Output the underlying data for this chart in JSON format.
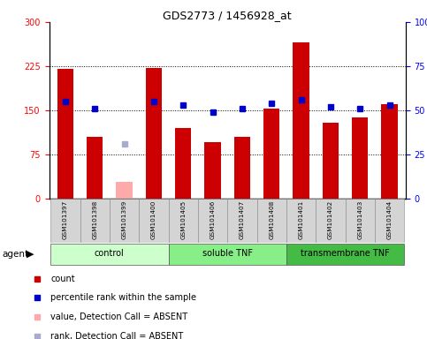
{
  "title": "GDS2773 / 1456928_at",
  "samples": [
    "GSM101397",
    "GSM101398",
    "GSM101399",
    "GSM101400",
    "GSM101405",
    "GSM101406",
    "GSM101407",
    "GSM101408",
    "GSM101401",
    "GSM101402",
    "GSM101403",
    "GSM101404"
  ],
  "count_values": [
    220,
    105,
    28,
    222,
    120,
    95,
    105,
    153,
    265,
    128,
    138,
    160
  ],
  "count_absent": [
    false,
    false,
    true,
    false,
    false,
    false,
    false,
    false,
    false,
    false,
    false,
    false
  ],
  "rank_values_pct": [
    55,
    51,
    31,
    55,
    53,
    49,
    51,
    54,
    56,
    52,
    51,
    53
  ],
  "rank_absent": [
    false,
    false,
    true,
    false,
    false,
    false,
    false,
    false,
    false,
    false,
    false,
    false
  ],
  "groups": [
    {
      "label": "control",
      "color": "#ccffcc",
      "start": 0,
      "end": 3
    },
    {
      "label": "soluble TNF",
      "color": "#88ee88",
      "start": 4,
      "end": 7
    },
    {
      "label": "transmembrane TNF",
      "color": "#44bb44",
      "start": 8,
      "end": 11
    }
  ],
  "ylim_left": [
    0,
    300
  ],
  "ylim_right": [
    0,
    100
  ],
  "yticks_left": [
    0,
    75,
    150,
    225,
    300
  ],
  "yticks_right_vals": [
    0,
    25,
    50,
    75,
    100
  ],
  "yticks_right_labels": [
    "0",
    "25",
    "50",
    "75",
    "100%"
  ],
  "bar_color": "#cc0000",
  "bar_absent_color": "#ffaaaa",
  "rank_color": "#0000cc",
  "rank_absent_color": "#aaaacc",
  "legend_items": [
    {
      "color": "#cc0000",
      "label": "count"
    },
    {
      "color": "#0000cc",
      "label": "percentile rank within the sample"
    },
    {
      "color": "#ffaaaa",
      "label": "value, Detection Call = ABSENT"
    },
    {
      "color": "#aaaacc",
      "label": "rank, Detection Call = ABSENT"
    }
  ]
}
